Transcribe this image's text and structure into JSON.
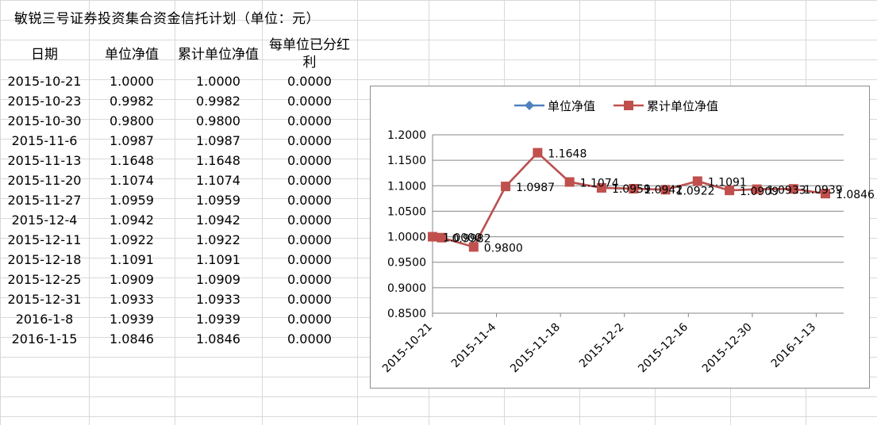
{
  "sheet": {
    "title": "敏锐三号证券投资集合资金信托计划（单位：元）",
    "headers": [
      "日期",
      "单位净值",
      "累计单位净值",
      "每单位已分红",
      "利"
    ],
    "rows": [
      [
        "2015-10-21",
        "1.0000",
        "1.0000",
        "0.0000"
      ],
      [
        "2015-10-23",
        "0.9982",
        "0.9982",
        "0.0000"
      ],
      [
        "2015-10-30",
        "0.9800",
        "0.9800",
        "0.0000"
      ],
      [
        "2015-11-6",
        "1.0987",
        "1.0987",
        "0.0000"
      ],
      [
        "2015-11-13",
        "1.1648",
        "1.1648",
        "0.0000"
      ],
      [
        "2015-11-20",
        "1.1074",
        "1.1074",
        "0.0000"
      ],
      [
        "2015-11-27",
        "1.0959",
        "1.0959",
        "0.0000"
      ],
      [
        "2015-12-4",
        "1.0942",
        "1.0942",
        "0.0000"
      ],
      [
        "2015-12-11",
        "1.0922",
        "1.0922",
        "0.0000"
      ],
      [
        "2015-12-18",
        "1.1091",
        "1.1091",
        "0.0000"
      ],
      [
        "2015-12-25",
        "1.0909",
        "1.0909",
        "0.0000"
      ],
      [
        "2015-12-31",
        "1.0933",
        "1.0933",
        "0.0000"
      ],
      [
        "2016-1-8",
        "1.0939",
        "1.0939",
        "0.0000"
      ],
      [
        "2016-1-15",
        "1.0846",
        "1.0846",
        "0.0000"
      ]
    ]
  },
  "chart_data": {
    "type": "line",
    "title": "",
    "xlabel": "",
    "ylabel": "",
    "x": [
      "2015-10-21",
      "2015-10-23",
      "2015-10-30",
      "2015-11-06",
      "2015-11-13",
      "2015-11-20",
      "2015-11-27",
      "2015-12-04",
      "2015-12-11",
      "2015-12-18",
      "2015-12-25",
      "2015-12-31",
      "2016-01-08",
      "2016-01-15"
    ],
    "series": [
      {
        "name": "单位净值",
        "color": "#4f81bd",
        "marker": "diamond",
        "values": [
          1.0,
          0.9982,
          0.98,
          1.0987,
          1.1648,
          1.1074,
          1.0959,
          1.0942,
          1.0922,
          1.1091,
          1.0909,
          1.0933,
          1.0939,
          1.0846
        ]
      },
      {
        "name": "累计单位净值",
        "color": "#c0504d",
        "marker": "square",
        "values": [
          1.0,
          0.9982,
          0.98,
          1.0987,
          1.1648,
          1.1074,
          1.0959,
          1.0942,
          1.0922,
          1.1091,
          1.0909,
          1.0933,
          1.0939,
          1.0846
        ]
      }
    ],
    "data_labels": [
      "1.0000",
      "0.9982",
      "0.9800",
      "1.0987",
      "1.1648",
      "1.1074",
      "1.0959",
      "1.0942",
      "1.0922",
      "1.1091",
      "1.0909",
      "1.0933",
      "1.0939",
      "1.0846"
    ],
    "ylim": [
      0.85,
      1.2
    ],
    "yticks": [
      "1.2000",
      "1.1500",
      "1.1000",
      "1.0500",
      "1.0000",
      "0.9500",
      "0.9000",
      "0.8500"
    ],
    "xticks": [
      "2015-10-21",
      "2015-11-4",
      "2015-11-18",
      "2015-12-2",
      "2015-12-16",
      "2015-12-30",
      "2016-1-13"
    ],
    "xtick_dates": [
      "2015-10-21",
      "2015-11-04",
      "2015-11-18",
      "2015-12-02",
      "2015-12-16",
      "2015-12-30",
      "2016-01-13"
    ],
    "grid": true,
    "legend": "top"
  }
}
